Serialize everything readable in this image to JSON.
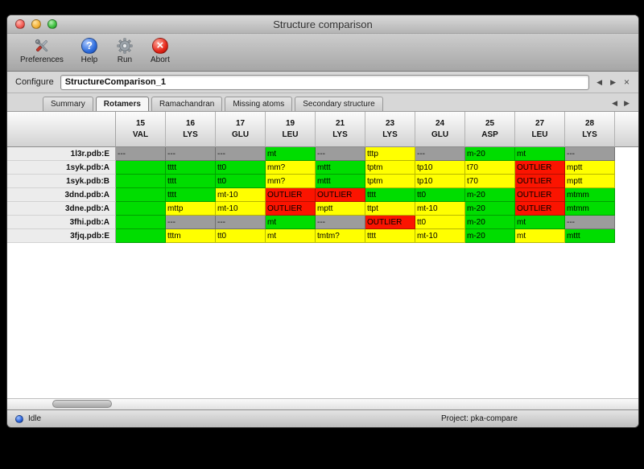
{
  "window": {
    "title": "Structure comparison"
  },
  "toolbar": {
    "buttons": [
      {
        "label": "Preferences"
      },
      {
        "label": "Help"
      },
      {
        "label": "Run"
      },
      {
        "label": "Abort"
      }
    ]
  },
  "icons": {
    "help_glyph": "?",
    "abort_glyph": "×"
  },
  "configure": {
    "label": "Configure",
    "value": "StructureComparison_1"
  },
  "nav_icons": {
    "prev": "◀",
    "next": "▶",
    "close": "×"
  },
  "tabs": {
    "items": [
      "Summary",
      "Rotamers",
      "Ramachandran",
      "Missing atoms",
      "Secondary structure"
    ],
    "active": "Rotamers"
  },
  "table": {
    "columns": [
      {
        "num": "15",
        "res": "VAL"
      },
      {
        "num": "16",
        "res": "LYS"
      },
      {
        "num": "17",
        "res": "GLU"
      },
      {
        "num": "19",
        "res": "LEU"
      },
      {
        "num": "21",
        "res": "LYS"
      },
      {
        "num": "23",
        "res": "LYS"
      },
      {
        "num": "24",
        "res": "GLU"
      },
      {
        "num": "25",
        "res": "ASP"
      },
      {
        "num": "27",
        "res": "LEU"
      },
      {
        "num": "28",
        "res": "LYS"
      }
    ],
    "rows": [
      {
        "label": "1l3r.pdb:E",
        "cells": [
          {
            "text": "---",
            "status": "na"
          },
          {
            "text": "---",
            "status": "na"
          },
          {
            "text": "---",
            "status": "na"
          },
          {
            "text": "mt",
            "status": "ok"
          },
          {
            "text": "---",
            "status": "na"
          },
          {
            "text": "tttp",
            "status": "warn"
          },
          {
            "text": "---",
            "status": "na"
          },
          {
            "text": "m-20",
            "status": "ok"
          },
          {
            "text": "mt",
            "status": "ok"
          },
          {
            "text": "---",
            "status": "na"
          }
        ]
      },
      {
        "label": "1syk.pdb:A",
        "cells": [
          {
            "text": "",
            "status": "ok"
          },
          {
            "text": "tttt",
            "status": "ok"
          },
          {
            "text": "tt0",
            "status": "ok"
          },
          {
            "text": "mm?",
            "status": "warn"
          },
          {
            "text": "mttt",
            "status": "ok"
          },
          {
            "text": "tptm",
            "status": "warn"
          },
          {
            "text": "tp10",
            "status": "warn"
          },
          {
            "text": "t70",
            "status": "warn"
          },
          {
            "text": "OUTLIER",
            "status": "outlier"
          },
          {
            "text": "mptt",
            "status": "warn"
          }
        ]
      },
      {
        "label": "1syk.pdb:B",
        "cells": [
          {
            "text": "",
            "status": "ok"
          },
          {
            "text": "tttt",
            "status": "ok"
          },
          {
            "text": "tt0",
            "status": "ok"
          },
          {
            "text": "mm?",
            "status": "warn"
          },
          {
            "text": "mttt",
            "status": "ok"
          },
          {
            "text": "tptm",
            "status": "warn"
          },
          {
            "text": "tp10",
            "status": "warn"
          },
          {
            "text": "t70",
            "status": "warn"
          },
          {
            "text": "OUTLIER",
            "status": "outlier"
          },
          {
            "text": "mptt",
            "status": "warn"
          }
        ]
      },
      {
        "label": "3dnd.pdb:A",
        "cells": [
          {
            "text": "",
            "status": "ok"
          },
          {
            "text": "tttt",
            "status": "ok"
          },
          {
            "text": "mt-10",
            "status": "warn"
          },
          {
            "text": "OUTLIER",
            "status": "outlier"
          },
          {
            "text": "OUTLIER",
            "status": "outlier"
          },
          {
            "text": "tttt",
            "status": "ok"
          },
          {
            "text": "tt0",
            "status": "ok"
          },
          {
            "text": "m-20",
            "status": "ok"
          },
          {
            "text": "OUTLIER",
            "status": "outlier"
          },
          {
            "text": "mtmm",
            "status": "ok"
          }
        ]
      },
      {
        "label": "3dne.pdb:A",
        "cells": [
          {
            "text": "",
            "status": "ok"
          },
          {
            "text": "mttp",
            "status": "warn"
          },
          {
            "text": "mt-10",
            "status": "warn"
          },
          {
            "text": "OUTLIER",
            "status": "outlier"
          },
          {
            "text": "mptt",
            "status": "warn"
          },
          {
            "text": "ttpt",
            "status": "warn"
          },
          {
            "text": "mt-10",
            "status": "warn"
          },
          {
            "text": "m-20",
            "status": "ok"
          },
          {
            "text": "OUTLIER",
            "status": "outlier"
          },
          {
            "text": "mtmm",
            "status": "ok"
          }
        ]
      },
      {
        "label": "3fhi.pdb:A",
        "cells": [
          {
            "text": "",
            "status": "ok"
          },
          {
            "text": "---",
            "status": "na"
          },
          {
            "text": "---",
            "status": "na"
          },
          {
            "text": "mt",
            "status": "ok"
          },
          {
            "text": "---",
            "status": "na"
          },
          {
            "text": "OUTLIER",
            "status": "outlier"
          },
          {
            "text": "tt0",
            "status": "warn"
          },
          {
            "text": "m-20",
            "status": "ok"
          },
          {
            "text": "mt",
            "status": "ok"
          },
          {
            "text": "---",
            "status": "na"
          }
        ]
      },
      {
        "label": "3fjq.pdb:E",
        "cells": [
          {
            "text": "",
            "status": "ok"
          },
          {
            "text": "tttm",
            "status": "warn"
          },
          {
            "text": "tt0",
            "status": "warn"
          },
          {
            "text": "mt",
            "status": "warn"
          },
          {
            "text": "tmtm?",
            "status": "warn"
          },
          {
            "text": "tttt",
            "status": "warn"
          },
          {
            "text": "mt-10",
            "status": "warn"
          },
          {
            "text": "m-20",
            "status": "ok"
          },
          {
            "text": "mt",
            "status": "warn"
          },
          {
            "text": "mttt",
            "status": "ok"
          }
        ]
      }
    ]
  },
  "status_bar": {
    "state": "Idle",
    "project": "Project: pka-compare"
  },
  "colors": {
    "ok": "#00dd00",
    "warn": "#ffff00",
    "outlier": "#fb1400",
    "na": "#9c9c9c"
  }
}
